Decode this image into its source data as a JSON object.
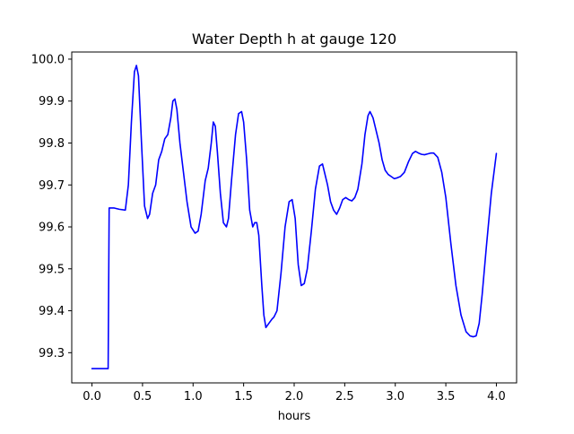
{
  "chart_data": {
    "type": "line",
    "title": "Water Depth h at gauge 120",
    "xlabel": "hours",
    "ylabel": "",
    "xlim": [
      -0.2,
      4.2
    ],
    "ylim": [
      99.228,
      100.017
    ],
    "x_ticks": [
      {
        "value": 0.0,
        "label": "0.0"
      },
      {
        "value": 0.5,
        "label": "0.5"
      },
      {
        "value": 1.0,
        "label": "1.0"
      },
      {
        "value": 1.5,
        "label": "1.5"
      },
      {
        "value": 2.0,
        "label": "2.0"
      },
      {
        "value": 2.5,
        "label": "2.5"
      },
      {
        "value": 3.0,
        "label": "3.0"
      },
      {
        "value": 3.5,
        "label": "3.5"
      },
      {
        "value": 4.0,
        "label": "4.0"
      }
    ],
    "y_ticks": [
      {
        "value": 99.3,
        "label": "99.3"
      },
      {
        "value": 99.4,
        "label": "99.4"
      },
      {
        "value": 99.5,
        "label": "99.5"
      },
      {
        "value": 99.6,
        "label": "99.6"
      },
      {
        "value": 99.7,
        "label": "99.7"
      },
      {
        "value": 99.8,
        "label": "99.8"
      },
      {
        "value": 99.9,
        "label": "99.9"
      },
      {
        "value": 100.0,
        "label": "100.0"
      }
    ],
    "grid": false,
    "series": [
      {
        "color": "#0000ff",
        "x": [
          0.0,
          0.16,
          0.16,
          0.17,
          0.22,
          0.27,
          0.33,
          0.36,
          0.39,
          0.42,
          0.44,
          0.46,
          0.49,
          0.52,
          0.55,
          0.57,
          0.6,
          0.63,
          0.66,
          0.69,
          0.72,
          0.75,
          0.78,
          0.8,
          0.82,
          0.84,
          0.87,
          0.9,
          0.94,
          0.98,
          1.02,
          1.05,
          1.08,
          1.1,
          1.12,
          1.15,
          1.18,
          1.2,
          1.22,
          1.24,
          1.27,
          1.3,
          1.33,
          1.35,
          1.38,
          1.42,
          1.45,
          1.48,
          1.5,
          1.53,
          1.56,
          1.59,
          1.61,
          1.63,
          1.65,
          1.68,
          1.7,
          1.72,
          1.75,
          1.78,
          1.8,
          1.83,
          1.87,
          1.91,
          1.95,
          1.98,
          2.01,
          2.04,
          2.07,
          2.1,
          2.13,
          2.17,
          2.21,
          2.25,
          2.28,
          2.3,
          2.33,
          2.36,
          2.39,
          2.42,
          2.45,
          2.48,
          2.51,
          2.54,
          2.57,
          2.6,
          2.63,
          2.67,
          2.7,
          2.73,
          2.75,
          2.78,
          2.81,
          2.84,
          2.87,
          2.9,
          2.93,
          2.96,
          2.99,
          3.02,
          3.05,
          3.09,
          3.13,
          3.17,
          3.2,
          3.23,
          3.26,
          3.29,
          3.32,
          3.35,
          3.38,
          3.42,
          3.46,
          3.5,
          3.55,
          3.6,
          3.65,
          3.7,
          3.74,
          3.77,
          3.8,
          3.83,
          3.86,
          3.9,
          3.95,
          4.0
        ],
        "y": [
          99.262,
          99.262,
          99.262,
          99.645,
          99.645,
          99.642,
          99.64,
          99.7,
          99.85,
          99.97,
          99.985,
          99.96,
          99.8,
          99.65,
          99.62,
          99.63,
          99.68,
          99.7,
          99.76,
          99.78,
          99.81,
          99.82,
          99.86,
          99.9,
          99.905,
          99.88,
          99.8,
          99.74,
          99.66,
          99.6,
          99.585,
          99.59,
          99.63,
          99.67,
          99.71,
          99.74,
          99.8,
          99.85,
          99.84,
          99.78,
          99.68,
          99.61,
          99.6,
          99.62,
          99.71,
          99.82,
          99.87,
          99.875,
          99.85,
          99.76,
          99.64,
          99.6,
          99.61,
          99.61,
          99.58,
          99.46,
          99.39,
          99.36,
          99.37,
          99.38,
          99.385,
          99.4,
          99.49,
          99.6,
          99.66,
          99.665,
          99.62,
          99.51,
          99.46,
          99.465,
          99.5,
          99.59,
          99.69,
          99.745,
          99.75,
          99.73,
          99.7,
          99.66,
          99.64,
          99.63,
          99.645,
          99.665,
          99.67,
          99.665,
          99.662,
          99.67,
          99.69,
          99.75,
          99.82,
          99.865,
          99.875,
          99.86,
          99.83,
          99.8,
          99.76,
          99.735,
          99.725,
          99.72,
          99.715,
          99.717,
          99.72,
          99.73,
          99.755,
          99.775,
          99.78,
          99.776,
          99.773,
          99.772,
          99.774,
          99.776,
          99.776,
          99.766,
          99.73,
          99.67,
          99.56,
          99.46,
          99.39,
          99.35,
          99.34,
          99.338,
          99.34,
          99.37,
          99.44,
          99.55,
          99.68,
          99.775
        ]
      }
    ]
  }
}
